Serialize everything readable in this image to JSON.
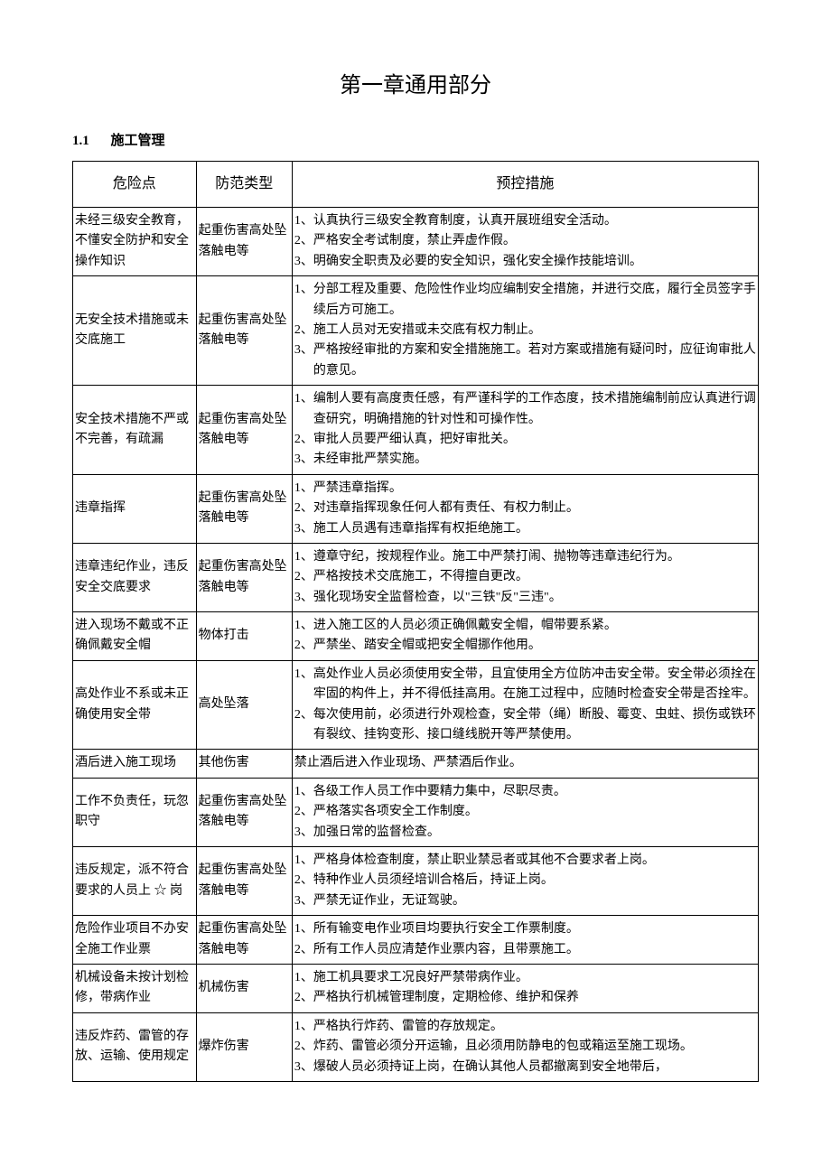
{
  "chapter_title": "第一章通用部分",
  "section": {
    "number": "1.1",
    "title": "施工管理"
  },
  "headers": {
    "risk": "危险点",
    "type": "防范类型",
    "measures": "预控措施"
  },
  "rows": [
    {
      "risk": "未经三级安全教育，不懂安全防护和安全操作知识",
      "type": "起重伤害高处坠落触电等",
      "measures": [
        "1、认真执行三级安全教育制度，认真开展班组安全活动。",
        "2、严格安全考试制度，禁止弄虚作假。",
        "3、明确安全职责及必要的安全知识，强化安全操作技能培训。"
      ]
    },
    {
      "risk": "无安全技术措施或未交底施工",
      "type": "起重伤害高处坠落触电等",
      "measures": [
        "1、分部工程及重要、危险性作业均应编制安全措施，并进行交底，履行全员签字手续后方可施工。",
        "2、施工人员对无安措或未交底有权力制止。",
        "3、严格按经审批的方案和安全措施施工。若对方案或措施有疑问时，应征询审批人的意见。"
      ]
    },
    {
      "risk": "安全技术措施不严或不完善，有疏漏",
      "type": "起重伤害高处坠落触电等",
      "measures": [
        "1、编制人要有高度责任感，有严谨科学的工作态度，技术措施编制前应认真进行调查研究，明确措施的针对性和可操作性。",
        "2、审批人员要严细认真，把好审批关。",
        "3、未经审批严禁实施。"
      ]
    },
    {
      "risk": "违章指挥",
      "type": "起重伤害高处坠落触电等",
      "measures": [
        "1、严禁违章指挥。",
        "2、对违章指挥现象任何人都有责任、有权力制止。",
        "3、施工人员遇有违章指挥有权拒绝施工。"
      ]
    },
    {
      "risk": "违章违纪作业，违反安全交底要求",
      "type": "起重伤害高处坠落触电等",
      "measures": [
        "1、遵章守纪，按规程作业。施工中严禁打闹、抛物等违章违纪行为。",
        "2、严格按技术交底施工，不得擅自更改。",
        "3、强化现场安全监督检查，以\"三铁\"反\"三违\"。"
      ]
    },
    {
      "risk": "进入现场不戴或不正确佩戴安全帽",
      "type": "物体打击",
      "measures": [
        "1、进入施工区的人员必须正确佩戴安全帽，帽带要系紧。",
        "2、严禁坐、踏安全帽或把安全帽挪作他用。"
      ]
    },
    {
      "risk": "高处作业不系或未正确使用安全带",
      "type": "高处坠落",
      "measures": [
        "1、高处作业人员必须使用安全带，且宜使用全方位防冲击安全带。安全带必须拴在牢固的构件上，并不得低挂高用。在施工过程中，应随时检查安全带是否拴牢。",
        "2、每次使用前，必须进行外观检查，安全带（绳）断股、霉变、虫蛀、损伤或铁环有裂纹、挂钩变形、接口缝线脱开等严禁使用。"
      ]
    },
    {
      "risk": "酒后进入施工现场",
      "type": "其他伤害",
      "measures": [
        "禁止酒后进入作业现场、严禁酒后作业。"
      ]
    },
    {
      "risk": "工作不负责任，玩忽职守",
      "type": "起重伤害高处坠落触电等",
      "measures": [
        "1、各级工作人员工作中要精力集中，尽职尽责。",
        "2、严格落实各项安全工作制度。",
        "3、加强日常的监督检查。"
      ]
    },
    {
      "risk": "违反规定，派不符合要求的人员上 ☆ 岗",
      "type": "起重伤害高处坠落触电等",
      "measures": [
        "1、严格身体检查制度，禁止职业禁忌者或其他不合要求者上岗。",
        "2、特种作业人员须经培训合格后，持证上岗。",
        "3、严禁无证作业，无证驾驶。"
      ]
    },
    {
      "risk": "危险作业项目不办安全施工作业票",
      "type": "起重伤害高处坠落触电等",
      "measures": [
        "1、所有输变电作业项目均要执行安全工作票制度。",
        "2、所有工作人员应清楚作业票内容，且带票施工。"
      ]
    },
    {
      "risk": "机械设备未按计划检修，带病作业",
      "type": "机械伤害",
      "measures": [
        "1、施工机具要求工况良好严禁带病作业。",
        "2、严格执行机械管理制度，定期检修、维护和保养"
      ]
    },
    {
      "risk": "违反炸药、雷管的存放、运输、使用规定",
      "type": "爆炸伤害",
      "measures": [
        "1、严格执行炸药、雷管的存放规定。",
        "2、炸药、雷管必须分开运输，且必须用防静电的包或箱运至施工现场。",
        "3、爆破人员必须持证上岗，在确认其他人员都撤离到安全地带后，"
      ]
    }
  ]
}
